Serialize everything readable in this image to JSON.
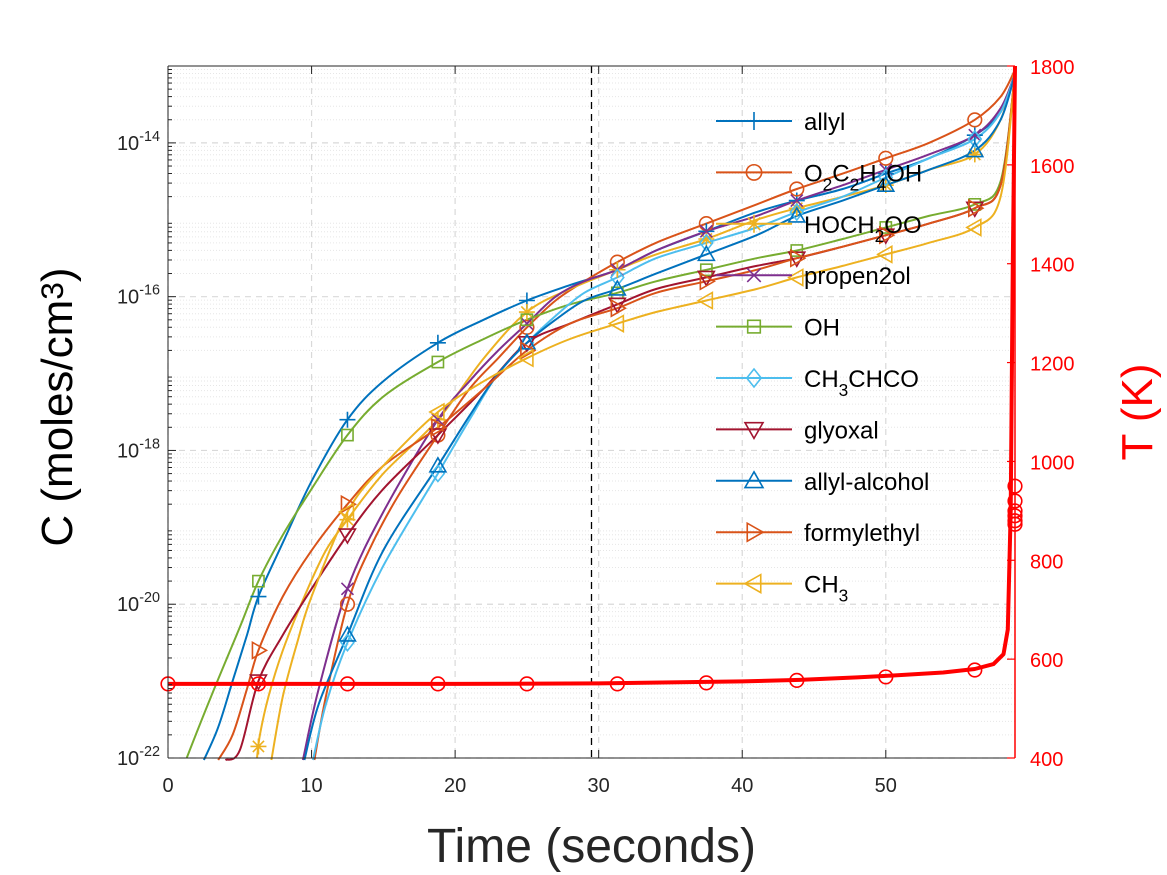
{
  "chart_data": {
    "type": "line",
    "title": "",
    "xlabel": "Time (seconds)",
    "ylabel": "C (moles/cm<sup>3</sup>)",
    "y2label": "T (K)",
    "xlim": [
      0,
      59
    ],
    "ylim": [
      -22,
      -13
    ],
    "yscale": "log",
    "y2lim": [
      400,
      1800
    ],
    "x_ticks": [
      "0",
      "10",
      "20",
      "30",
      "40",
      "50"
    ],
    "y_ticks": [
      {
        "exp": -22,
        "label": "10<sup>-22</sup>"
      },
      {
        "exp": -20,
        "label": "10<sup>-20</sup>"
      },
      {
        "exp": -18,
        "label": "10<sup>-18</sup>"
      },
      {
        "exp": -16,
        "label": "10<sup>-16</sup>"
      },
      {
        "exp": -14,
        "label": "10<sup>-14</sup>"
      }
    ],
    "y2_ticks": [
      "400",
      "600",
      "800",
      "1000",
      "1200",
      "1400",
      "1600",
      "1800"
    ],
    "grid": true,
    "dashed_vline_x": 29.5,
    "legend_position": "top-right inside",
    "series": [
      {
        "name": "allyl",
        "label": "allyl",
        "color": "#0072bd",
        "marker": "plus",
        "x": [
          2.5,
          3.5,
          4.5,
          5.5,
          6.3,
          8,
          10,
          12.5,
          15,
          18.8,
          22,
          25,
          28,
          31.3,
          34,
          37.5,
          41,
          43.8,
          47,
          50,
          53,
          56.2,
          58,
          59
        ],
        "y": [
          -22.3,
          -21.6,
          -21.0,
          -20.4,
          -19.9,
          -19.2,
          -18.4,
          -17.6,
          -17.1,
          -16.6,
          -16.3,
          -16.05,
          -15.85,
          -15.65,
          -15.4,
          -15.15,
          -14.9,
          -14.75,
          -14.6,
          -14.4,
          -14.2,
          -13.9,
          -13.6,
          -13.1
        ],
        "mx": [
          6.3,
          12.5,
          18.8,
          25,
          31.3,
          37.5,
          43.8,
          50,
          56.2
        ]
      },
      {
        "name": "O2C2H4OH",
        "label": "O<sub>2</sub>C<sub>2</sub>H<sub>4</sub>OH",
        "color": "#d95319",
        "marker": "circle",
        "x": [
          10.2,
          11,
          12.5,
          14,
          16,
          18.8,
          21,
          23,
          25,
          27,
          29,
          31.3,
          34,
          37.5,
          41,
          43.8,
          47,
          50,
          53,
          56.2,
          58,
          59
        ],
        "y": [
          -22.1,
          -21.2,
          -20.0,
          -19.3,
          -18.6,
          -17.8,
          -17.2,
          -16.8,
          -16.4,
          -16.05,
          -15.8,
          -15.55,
          -15.3,
          -15.05,
          -14.8,
          -14.6,
          -14.4,
          -14.2,
          -14.0,
          -13.7,
          -13.4,
          -13.05
        ],
        "mx": [
          12.5,
          18.8,
          25,
          31.3,
          37.5,
          43.8,
          50,
          56.2
        ]
      },
      {
        "name": "HOCH2OO",
        "label": "HOCH<sub>2</sub>OO",
        "color": "#edb120",
        "marker": "star",
        "x": [
          6.2,
          6.4,
          7,
          8,
          9.5,
          11,
          12.5,
          15,
          18.8,
          22,
          25,
          28,
          31.3,
          34,
          37.5,
          41,
          43.8,
          47,
          50,
          53,
          56.2,
          58,
          59
        ],
        "y": [
          -22.0,
          -21.7,
          -21.2,
          -20.6,
          -19.9,
          -19.3,
          -18.9,
          -18.3,
          -17.6,
          -16.8,
          -16.2,
          -15.9,
          -15.65,
          -15.45,
          -15.25,
          -15.0,
          -14.85,
          -14.7,
          -14.55,
          -14.35,
          -14.15,
          -13.7,
          -13.05
        ],
        "mx": [
          6.3,
          12.5,
          18.8,
          25,
          31.3,
          37.5,
          43.8,
          50,
          56.2
        ]
      },
      {
        "name": "propen2ol",
        "label": "propen2ol",
        "color": "#7e2f8e",
        "marker": "x",
        "x": [
          9.4,
          10.5,
          12.5,
          15,
          18.8,
          21,
          23,
          25,
          27,
          29,
          31.3,
          34,
          37.5,
          41,
          43.8,
          47,
          50,
          53,
          56.2,
          58,
          59
        ],
        "y": [
          -22.1,
          -21.1,
          -19.8,
          -18.8,
          -17.6,
          -17.1,
          -16.7,
          -16.35,
          -16.0,
          -15.8,
          -15.65,
          -15.4,
          -15.15,
          -14.95,
          -14.75,
          -14.55,
          -14.35,
          -14.15,
          -13.9,
          -13.55,
          -13.1
        ],
        "mx": [
          12.5,
          18.8,
          25,
          31.3,
          37.5,
          43.8,
          50,
          56.2
        ]
      },
      {
        "name": "OH",
        "label": "OH",
        "color": "#77ac30",
        "marker": "square",
        "x": [
          1.3,
          3,
          5,
          6.3,
          8,
          10,
          12.5,
          15,
          18.8,
          22,
          25,
          28,
          31.3,
          34,
          37.5,
          41,
          43.8,
          47,
          50,
          53,
          56.2,
          58,
          59
        ],
        "y": [
          -22.0,
          -21.2,
          -20.3,
          -19.7,
          -19.1,
          -18.5,
          -17.8,
          -17.3,
          -16.85,
          -16.55,
          -16.3,
          -16.1,
          -15.95,
          -15.8,
          -15.65,
          -15.5,
          -15.4,
          -15.25,
          -15.1,
          -14.95,
          -14.8,
          -14.5,
          -13.1
        ],
        "mx": [
          6.3,
          12.5,
          18.8,
          25,
          31.3,
          37.5,
          43.8,
          50,
          56.2
        ]
      },
      {
        "name": "CH3CHCO",
        "label": "CH<sub>3</sub>CHCO",
        "color": "#4dbeee",
        "marker": "diamond",
        "x": [
          10.1,
          11,
          12.5,
          15,
          18.8,
          21,
          23,
          25,
          27,
          29,
          31.3,
          34,
          37.5,
          41,
          43.8,
          47,
          50,
          53,
          56.2,
          58,
          59
        ],
        "y": [
          -22.1,
          -21.3,
          -20.5,
          -19.5,
          -18.3,
          -17.6,
          -17.0,
          -16.6,
          -16.25,
          -15.95,
          -15.75,
          -15.5,
          -15.3,
          -15.1,
          -14.9,
          -14.7,
          -14.45,
          -14.2,
          -13.95,
          -13.6,
          -13.1
        ],
        "mx": [
          12.5,
          18.8,
          25,
          31.3,
          37.5,
          43.8,
          50,
          56.2
        ]
      },
      {
        "name": "glyoxal",
        "label": "glyoxal",
        "color": "#a2142f",
        "marker": "triangle-down",
        "x": [
          4,
          5,
          6.3,
          8,
          10,
          12.5,
          15,
          18.8,
          22,
          25,
          28,
          31.3,
          34,
          37.5,
          41,
          43.8,
          47,
          50,
          53,
          56.2,
          58,
          59
        ],
        "y": [
          -22.3,
          -21.9,
          -21.0,
          -20.4,
          -19.8,
          -19.1,
          -18.5,
          -17.8,
          -17.2,
          -16.6,
          -16.35,
          -16.1,
          -15.9,
          -15.75,
          -15.6,
          -15.5,
          -15.35,
          -15.2,
          -15.05,
          -14.85,
          -14.55,
          -13.1
        ],
        "mx": [
          6.3,
          12.5,
          18.8,
          25,
          31.3,
          37.5,
          43.8,
          50,
          56.2
        ]
      },
      {
        "name": "allyl-alcohol",
        "label": "allyl-alcohol",
        "color": "#0072bd",
        "marker": "triangle-up",
        "x": [
          9.5,
          10.5,
          12.5,
          15,
          18.8,
          21,
          23,
          25,
          27,
          29,
          31.3,
          34,
          37.5,
          41,
          43.8,
          47,
          50,
          53,
          56.2,
          58,
          59
        ],
        "y": [
          -22.1,
          -21.3,
          -20.4,
          -19.3,
          -18.2,
          -17.55,
          -17.0,
          -16.6,
          -16.3,
          -16.05,
          -15.9,
          -15.7,
          -15.45,
          -15.2,
          -14.95,
          -14.75,
          -14.55,
          -14.35,
          -14.1,
          -13.7,
          -13.1
        ],
        "mx": [
          12.5,
          18.8,
          25,
          31.3,
          37.5,
          43.8,
          50,
          56.2
        ]
      },
      {
        "name": "formylethyl",
        "label": "formylethyl",
        "color": "#d95319",
        "marker": "triangle-right",
        "x": [
          3.5,
          4.5,
          5.5,
          6.3,
          8,
          10,
          12.5,
          15,
          18.8,
          22,
          25,
          28,
          31.3,
          34,
          37.5,
          41,
          43.8,
          47,
          50,
          53,
          56.2,
          58,
          59
        ],
        "y": [
          -22.2,
          -21.7,
          -21.1,
          -20.6,
          -19.9,
          -19.3,
          -18.7,
          -18.2,
          -17.7,
          -17.2,
          -16.7,
          -16.35,
          -16.15,
          -15.95,
          -15.8,
          -15.65,
          -15.5,
          -15.35,
          -15.2,
          -15.05,
          -14.85,
          -14.55,
          -13.1
        ],
        "mx": [
          6.3,
          12.5,
          18.8,
          25,
          31.3,
          37.5,
          43.8,
          50,
          56.2
        ]
      },
      {
        "name": "CH3",
        "label": "CH<sub>3</sub>",
        "color": "#edb120",
        "marker": "triangle-left",
        "x": [
          7.2,
          8,
          9,
          10,
          12.5,
          15,
          18.8,
          22,
          25,
          28,
          31.3,
          34,
          37.5,
          41,
          43.8,
          47,
          50,
          53,
          56.2,
          58,
          59
        ],
        "y": [
          -22.1,
          -21.2,
          -20.5,
          -19.9,
          -18.8,
          -18.2,
          -17.5,
          -17.1,
          -16.8,
          -16.55,
          -16.35,
          -16.2,
          -16.05,
          -15.9,
          -15.75,
          -15.6,
          -15.45,
          -15.3,
          -15.1,
          -14.7,
          -13.1
        ],
        "mx": [
          12.5,
          18.8,
          25,
          31.3,
          37.5,
          43.8,
          50,
          56.2
        ]
      }
    ],
    "temperature_series": {
      "name": "T",
      "color": "#ff0000",
      "marker": "circle",
      "x": [
        0,
        10,
        20,
        30,
        40,
        44,
        48,
        50,
        54,
        56.2,
        57.5,
        58.2,
        58.5,
        58.7,
        58.85,
        59
      ],
      "y": [
        550,
        550,
        550,
        551,
        555,
        558,
        563,
        566,
        573,
        580,
        590,
        610,
        660,
        900,
        1400,
        1800
      ],
      "mx": [
        0,
        6.3,
        12.5,
        18.8,
        25,
        31.3,
        37.5,
        43.8,
        50,
        56.2,
        59,
        59,
        59,
        59,
        59,
        59
      ],
      "my": [
        550,
        550,
        550,
        550,
        550,
        550,
        552,
        557,
        564,
        578,
        873,
        880,
        890,
        900,
        920,
        950
      ]
    }
  }
}
